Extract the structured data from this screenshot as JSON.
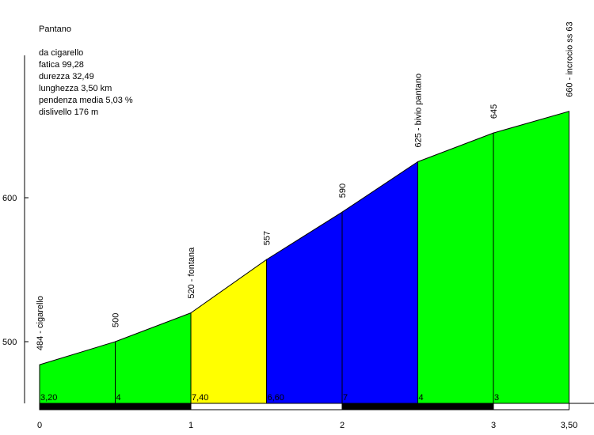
{
  "info": {
    "title": "Pantano",
    "start": "da cigarello",
    "fatica": "fatica 99,28",
    "durezza": "durezza 32,49",
    "lunghezza": "lunghezza 3,50 km",
    "pendenza": "pendenza media 5,03 %",
    "dislivello": "dislivello 176 m"
  },
  "chart_data": {
    "type": "area",
    "xlabel": "",
    "ylabel": "",
    "xlim": [
      0,
      3.5
    ],
    "ylim": [
      457,
      690
    ],
    "x_ticks": [
      {
        "value": 0,
        "label": "0"
      },
      {
        "value": 1,
        "label": "1"
      },
      {
        "value": 2,
        "label": "2"
      },
      {
        "value": 3,
        "label": "3"
      },
      {
        "value": 3.5,
        "label": "3,50"
      }
    ],
    "y_ticks": [
      {
        "value": 500,
        "label": "500"
      },
      {
        "value": 600,
        "label": "600"
      }
    ],
    "points": [
      {
        "km": 0,
        "alt": 484,
        "label": "484 - cigarello"
      },
      {
        "km": 0.5,
        "alt": 500,
        "label": "500"
      },
      {
        "km": 1.0,
        "alt": 520,
        "label": "520 - fontana"
      },
      {
        "km": 1.5,
        "alt": 557,
        "label": "557"
      },
      {
        "km": 2.0,
        "alt": 590,
        "label": "590"
      },
      {
        "km": 2.5,
        "alt": 625,
        "label": "625 - bivio pantano"
      },
      {
        "km": 3.0,
        "alt": 645,
        "label": "645"
      },
      {
        "km": 3.5,
        "alt": 660,
        "label": "660 - incrocio ss 63"
      }
    ],
    "segments": [
      {
        "from": 0,
        "to": 0.5,
        "gradient": "3,20",
        "color": "#00ff00"
      },
      {
        "from": 0.5,
        "to": 1.0,
        "gradient": "4",
        "color": "#00ff00"
      },
      {
        "from": 1.0,
        "to": 1.5,
        "gradient": "7,40",
        "color": "#ffff00"
      },
      {
        "from": 1.5,
        "to": 2.0,
        "gradient": "6,60",
        "color": "#0000ff"
      },
      {
        "from": 2.0,
        "to": 2.5,
        "gradient": "7",
        "color": "#0000ff"
      },
      {
        "from": 2.5,
        "to": 3.0,
        "gradient": "4",
        "color": "#00ff00"
      },
      {
        "from": 3.0,
        "to": 3.5,
        "gradient": "3",
        "color": "#00ff00"
      }
    ],
    "km_bar": [
      {
        "from": 0,
        "to": 1,
        "color": "#000000"
      },
      {
        "from": 1,
        "to": 2,
        "color": "#ffffff"
      },
      {
        "from": 2,
        "to": 3,
        "color": "#000000"
      },
      {
        "from": 3,
        "to": 3.5,
        "color": "#ffffff"
      }
    ],
    "grid": false,
    "legend": "none"
  }
}
